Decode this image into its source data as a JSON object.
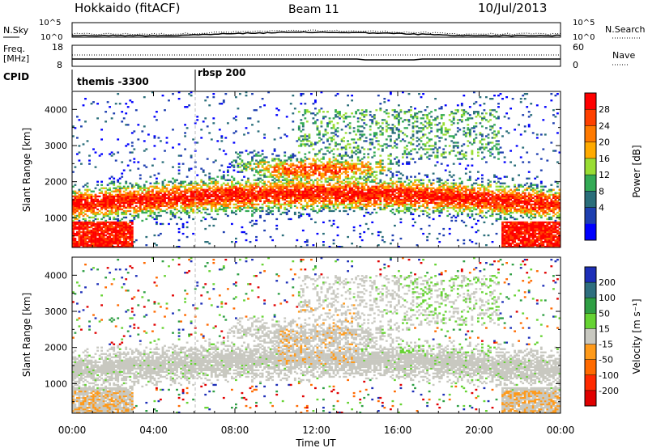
{
  "header": {
    "station": "Hokkaido (fitACF)",
    "beam": "Beam 11",
    "date": "10/Jul/2013"
  },
  "top_panels": {
    "nsky_label": "N.Sky",
    "nsky_ticks": [
      "10^5",
      "10^0"
    ],
    "nsearch_label": "N.Search",
    "nsearch_ticks": [
      "10^5",
      "10^0"
    ],
    "freq_label_1": "Freq.",
    "freq_label_2": "[MHz]",
    "freq_ticks": [
      "18",
      "8"
    ],
    "nave_label": "Nave",
    "nave_ticks": [
      "60",
      "0"
    ],
    "cpid_label": "CPID",
    "cpid_entries": [
      {
        "label": "themis -3300",
        "start_hour": 0
      },
      {
        "label": "rbsp 200",
        "start_hour": 6
      }
    ]
  },
  "chart_data": [
    {
      "type": "heatmap",
      "name": "power",
      "ylabel": "Slant Range [km]",
      "yticks": [
        "4000",
        "3000",
        "2000",
        "1000"
      ],
      "colorbar_label": "Power [dB]",
      "colorbar_ticks": [
        "28",
        "24",
        "20",
        "16",
        "12",
        "8",
        "4"
      ],
      "colors": [
        "#ff0000",
        "#ff4000",
        "#ff7a00",
        "#ffaa00",
        "#99dd33",
        "#33aa55",
        "#2a6e7a",
        "#1e3fb0",
        "#0000ff"
      ]
    },
    {
      "type": "heatmap",
      "name": "velocity",
      "ylabel": "Slant Range [km]",
      "yticks": [
        "4000",
        "3000",
        "2000",
        "1000"
      ],
      "colorbar_label": "Velocity [m s⁻¹]",
      "colorbar_ticks": [
        "200",
        "100",
        "50",
        "15",
        "-15",
        "-50",
        "-100",
        "-200"
      ],
      "colors": [
        "#1d2fb8",
        "#2f6f7f",
        "#2f9f44",
        "#66d333",
        "#c8c8c0",
        "#ff9a1a",
        "#ff6a00",
        "#ff2a00",
        "#e00000"
      ],
      "xlabel": "Time UT",
      "xticks": [
        "00:00",
        "04:00",
        "08:00",
        "12:00",
        "16:00",
        "20:00",
        "00:00"
      ]
    }
  ]
}
